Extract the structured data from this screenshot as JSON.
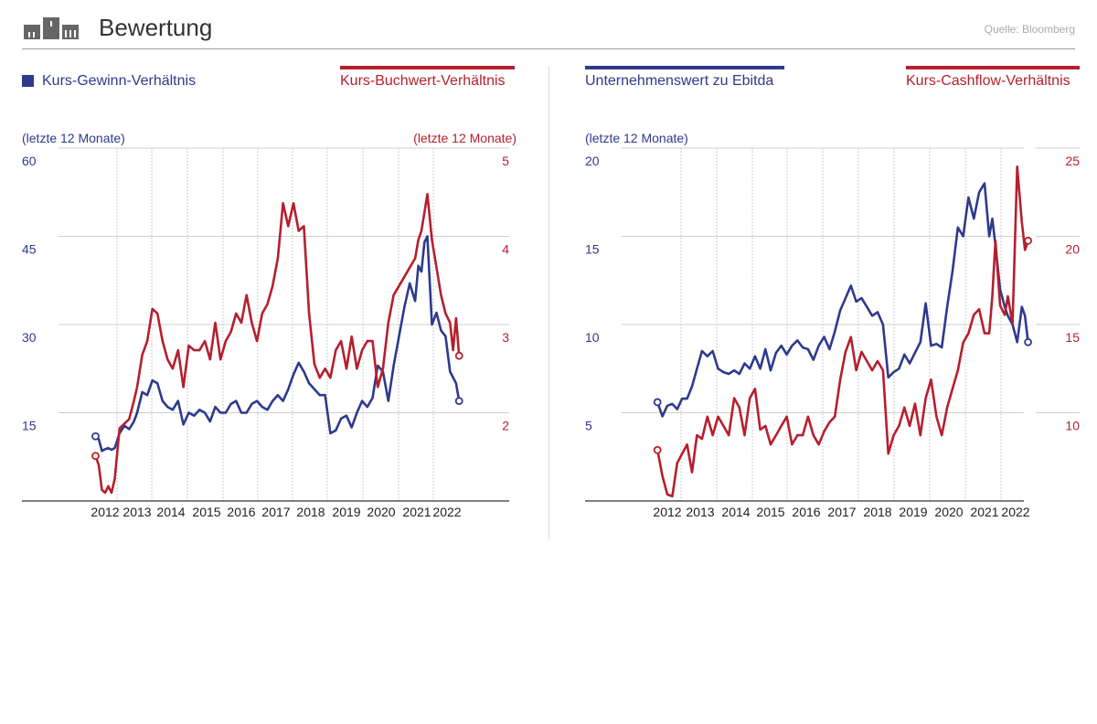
{
  "header": {
    "title": "Bewertung",
    "source": "Quelle: Bloomberg"
  },
  "colors": {
    "blue": "#2e3a8c",
    "red": "#b51f2e",
    "grid": "#cfcfcf"
  },
  "legend": {
    "left_blue": "Kurs-Gewinn-Verhältnis",
    "left_red": "Kurs-Buchwert-Verhältnis",
    "right_blue": "Unternehmenswert zu Ebitda",
    "right_red": "Kurs-Cashflow-Verhältnis"
  },
  "units": {
    "left_blue": "(letzte 12 Monate)",
    "left_red": "(letzte 12 Monate)",
    "right_blue": "(letzte 12 Monate)"
  },
  "chart_data": [
    {
      "type": "line",
      "title": "Kurs-Gewinn-Verhältnis / Kurs-Buchwert-Verhältnis",
      "x_range": [
        2011.0,
        2022.6
      ],
      "categories": [
        "2012",
        "2013",
        "2014",
        "2015",
        "2016",
        "2017",
        "2018",
        "2019",
        "2020",
        "2021",
        "2022"
      ],
      "y_left": {
        "ticks": [
          "60",
          "45",
          "30",
          "15"
        ],
        "min": 0,
        "max": 60
      },
      "y_right": {
        "ticks": [
          "5",
          "4",
          "3",
          "2"
        ],
        "min": 1.16,
        "max": 5
      },
      "series": [
        {
          "name": "Kurs-Gewinn-Verhältnis",
          "axis": "left",
          "color": "blue",
          "x": [
            2011.7,
            2011.8,
            2011.9,
            2012.0,
            2012.1,
            2012.2,
            2012.3,
            2012.45,
            2012.6,
            2012.75,
            2012.9,
            2013.0,
            2013.15,
            2013.3,
            2013.45,
            2013.6,
            2013.75,
            2013.9,
            2014.05,
            2014.2,
            2014.35,
            2014.5,
            2014.65,
            2014.8,
            2014.95,
            2015.1,
            2015.25,
            2015.4,
            2015.55,
            2015.7,
            2015.85,
            2016.0,
            2016.15,
            2016.3,
            2016.45,
            2016.6,
            2016.75,
            2016.9,
            2017.05,
            2017.2,
            2017.35,
            2017.5,
            2017.65,
            2017.8,
            2017.95,
            2018.1,
            2018.25,
            2018.4,
            2018.55,
            2018.7,
            2018.85,
            2019.0,
            2019.15,
            2019.3,
            2019.45,
            2019.6,
            2019.75,
            2019.9,
            2020.05,
            2020.2,
            2020.35,
            2020.5,
            2020.65,
            2020.8,
            2020.95,
            2021.05,
            2021.15,
            2021.25,
            2021.35,
            2021.5,
            2021.65,
            2021.8,
            2021.95,
            2022.1,
            2022.2,
            2022.3,
            2022.4
          ],
          "values": [
            11,
            10.5,
            8.5,
            8.8,
            9,
            8.7,
            9,
            11.5,
            12.8,
            12.2,
            13.5,
            15,
            18.5,
            18,
            20.5,
            20,
            17,
            16,
            15.5,
            17,
            13,
            15,
            14.5,
            15.5,
            15,
            13.5,
            16,
            15,
            15,
            16.5,
            17,
            15,
            15,
            16.5,
            17,
            16,
            15.5,
            17,
            18,
            17,
            19,
            21.5,
            23.5,
            22,
            20,
            19,
            18,
            18,
            11.5,
            12,
            14,
            14.5,
            12.5,
            15,
            17,
            16,
            17.5,
            23,
            22,
            17,
            23,
            28,
            33,
            37,
            34,
            40,
            39,
            44,
            45,
            30,
            32,
            29,
            28,
            22,
            21,
            20,
            17
          ]
        },
        {
          "name": "Kurs-Buchwert-Verhältnis",
          "axis": "right",
          "color": "red",
          "x": [
            2011.7,
            2011.8,
            2011.9,
            2012.0,
            2012.1,
            2012.2,
            2012.3,
            2012.45,
            2012.6,
            2012.75,
            2012.9,
            2013.0,
            2013.15,
            2013.3,
            2013.45,
            2013.6,
            2013.75,
            2013.9,
            2014.05,
            2014.2,
            2014.35,
            2014.5,
            2014.65,
            2014.8,
            2014.95,
            2015.1,
            2015.25,
            2015.4,
            2015.55,
            2015.7,
            2015.85,
            2016.0,
            2016.15,
            2016.3,
            2016.45,
            2016.6,
            2016.75,
            2016.9,
            2017.05,
            2017.2,
            2017.35,
            2017.5,
            2017.65,
            2017.8,
            2017.95,
            2018.1,
            2018.25,
            2018.4,
            2018.55,
            2018.7,
            2018.85,
            2019.0,
            2019.15,
            2019.3,
            2019.45,
            2019.6,
            2019.75,
            2019.9,
            2020.05,
            2020.2,
            2020.35,
            2020.5,
            2020.65,
            2020.8,
            2020.95,
            2021.05,
            2021.15,
            2021.25,
            2021.35,
            2021.5,
            2021.65,
            2021.8,
            2021.95,
            2022.1,
            2022.2,
            2022.3,
            2022.4
          ],
          "values": [
            1.65,
            1.55,
            1.28,
            1.25,
            1.32,
            1.25,
            1.4,
            1.95,
            2.0,
            2.05,
            2.25,
            2.4,
            2.75,
            2.9,
            3.25,
            3.2,
            2.9,
            2.7,
            2.6,
            2.8,
            2.4,
            2.85,
            2.8,
            2.8,
            2.9,
            2.7,
            3.1,
            2.7,
            2.9,
            3.0,
            3.2,
            3.1,
            3.4,
            3.1,
            2.9,
            3.2,
            3.3,
            3.5,
            3.8,
            4.4,
            4.15,
            4.4,
            4.1,
            4.15,
            3.2,
            2.65,
            2.5,
            2.6,
            2.5,
            2.8,
            2.9,
            2.6,
            2.95,
            2.6,
            2.8,
            2.9,
            2.9,
            2.4,
            2.6,
            3.1,
            3.4,
            3.5,
            3.6,
            3.7,
            3.8,
            4.0,
            4.1,
            4.3,
            4.5,
            4.0,
            3.7,
            3.4,
            3.2,
            3.1,
            2.8,
            3.15,
            2.74
          ]
        }
      ]
    },
    {
      "type": "line",
      "title": "Unternehmenswert zu Ebitda / Kurs-Cashflow-Verhältnis",
      "x_range": [
        2011.0,
        2022.6
      ],
      "categories": [
        "2012",
        "2013",
        "2014",
        "2015",
        "2016",
        "2017",
        "2018",
        "2019",
        "2020",
        "2021",
        "2022"
      ],
      "y_left": {
        "ticks": [
          "20",
          "15",
          "10",
          "5"
        ],
        "min": 0,
        "max": 20
      },
      "y_right": {
        "ticks": [
          "25",
          "20",
          "15",
          "10"
        ],
        "min": 5.95,
        "max": 25
      },
      "series": [
        {
          "name": "Unternehmenswert zu Ebitda",
          "axis": "left",
          "color": "blue",
          "x": [
            2011.7,
            2011.85,
            2012.0,
            2012.15,
            2012.3,
            2012.45,
            2012.6,
            2012.75,
            2012.9,
            2013.05,
            2013.2,
            2013.35,
            2013.5,
            2013.65,
            2013.8,
            2013.95,
            2014.1,
            2014.25,
            2014.4,
            2014.55,
            2014.7,
            2014.85,
            2015.0,
            2015.15,
            2015.3,
            2015.45,
            2015.6,
            2015.75,
            2015.9,
            2016.05,
            2016.2,
            2016.35,
            2016.5,
            2016.65,
            2016.8,
            2016.95,
            2017.1,
            2017.25,
            2017.4,
            2017.55,
            2017.7,
            2017.85,
            2018.0,
            2018.15,
            2018.3,
            2018.45,
            2018.6,
            2018.75,
            2018.9,
            2019.05,
            2019.2,
            2019.35,
            2019.5,
            2019.65,
            2019.8,
            2019.95,
            2020.1,
            2020.25,
            2020.4,
            2020.55,
            2020.7,
            2020.85,
            2021.0,
            2021.15,
            2021.25,
            2021.35,
            2021.5,
            2021.65,
            2021.75,
            2021.9,
            2022.05,
            2022.2,
            2022.3,
            2022.4
          ],
          "values": [
            5.6,
            4.8,
            5.4,
            5.5,
            5.2,
            5.8,
            5.8,
            6.5,
            7.5,
            8.5,
            8.2,
            8.5,
            7.5,
            7.3,
            7.2,
            7.4,
            7.2,
            7.8,
            7.5,
            8.2,
            7.5,
            8.6,
            7.4,
            8.4,
            8.8,
            8.3,
            8.8,
            9.1,
            8.7,
            8.6,
            8.0,
            8.8,
            9.3,
            8.6,
            9.6,
            10.8,
            11.5,
            12.2,
            11.3,
            11.5,
            11.0,
            10.5,
            10.7,
            10.0,
            7.0,
            7.3,
            7.5,
            8.3,
            7.8,
            8.4,
            9.0,
            11.2,
            8.8,
            8.9,
            8.7,
            11.0,
            13.0,
            15.5,
            15.0,
            17.2,
            16.0,
            17.5,
            18.0,
            15.0,
            16.0,
            14.5,
            12.0,
            11.0,
            10.5,
            10.0,
            9.0,
            11.0,
            10.5,
            9.0
          ]
        },
        {
          "name": "Kurs-Cashflow-Verhältnis",
          "axis": "right",
          "color": "red",
          "x": [
            2011.7,
            2011.85,
            2012.0,
            2012.15,
            2012.3,
            2012.45,
            2012.6,
            2012.75,
            2012.9,
            2013.05,
            2013.2,
            2013.35,
            2013.5,
            2013.65,
            2013.8,
            2013.95,
            2014.1,
            2014.25,
            2014.4,
            2014.55,
            2014.7,
            2014.85,
            2015.0,
            2015.15,
            2015.3,
            2015.45,
            2015.6,
            2015.75,
            2015.9,
            2016.05,
            2016.2,
            2016.35,
            2016.5,
            2016.65,
            2016.8,
            2016.95,
            2017.1,
            2017.25,
            2017.4,
            2017.55,
            2017.7,
            2017.85,
            2018.0,
            2018.15,
            2018.3,
            2018.45,
            2018.6,
            2018.75,
            2018.9,
            2019.05,
            2019.2,
            2019.35,
            2019.5,
            2019.65,
            2019.8,
            2019.95,
            2020.1,
            2020.25,
            2020.4,
            2020.55,
            2020.7,
            2020.85,
            2021.0,
            2021.15,
            2021.25,
            2021.35,
            2021.5,
            2021.65,
            2021.75,
            2021.9,
            2022.05,
            2022.2,
            2022.3,
            2022.4
          ],
          "values": [
            8.7,
            7.3,
            6.3,
            6.2,
            8.0,
            8.5,
            9.0,
            7.5,
            9.5,
            9.3,
            10.5,
            9.5,
            10.5,
            10.0,
            9.5,
            11.5,
            11.0,
            9.5,
            11.5,
            12.0,
            9.8,
            10.0,
            9.0,
            9.5,
            10.0,
            10.5,
            9.0,
            9.5,
            9.5,
            10.5,
            9.5,
            9.0,
            9.7,
            10.2,
            10.5,
            12.5,
            14.0,
            14.8,
            13.0,
            14.0,
            13.5,
            13.0,
            13.5,
            13.0,
            8.5,
            9.5,
            10.0,
            11.0,
            10.0,
            11.2,
            9.5,
            11.5,
            12.5,
            10.5,
            9.5,
            11.0,
            12.0,
            13.0,
            14.5,
            15.0,
            16.0,
            16.3,
            15.0,
            15.0,
            17.0,
            20.0,
            16.5,
            16.0,
            17.0,
            15.5,
            24.0,
            21.0,
            19.5,
            20.0
          ]
        }
      ]
    }
  ]
}
